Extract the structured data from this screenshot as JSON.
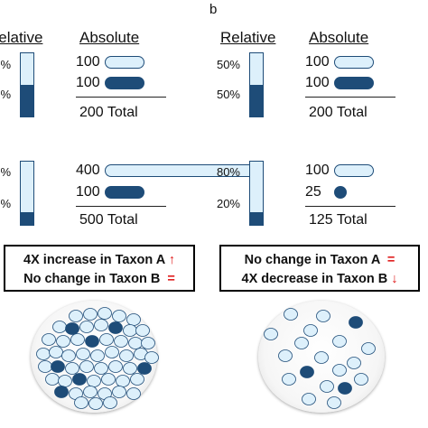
{
  "panel_label": "b",
  "colors": {
    "dark": "#1e4c78",
    "light": "#ddf0fb",
    "arrow": "#e02020"
  },
  "headers": {
    "relative": "Relative",
    "absolute": "Absolute"
  },
  "left": {
    "top": {
      "pct_a": "%",
      "pct_b": "%",
      "a_rel": 0.5,
      "count_a": "100",
      "count_b": "100",
      "total": "200 Total",
      "a_abs": 100,
      "b_abs": 100
    },
    "bottom": {
      "pct_a": "%",
      "pct_b": "%",
      "a_rel": 0.8,
      "count_a": "400",
      "count_b": "100",
      "total": "500 Total",
      "a_abs": 400,
      "b_abs": 100
    },
    "box": {
      "line1": "4X increase in Taxon A",
      "line1_mark": "↑",
      "line2": "No change in Taxon B",
      "line2_mark": "="
    }
  },
  "right": {
    "top": {
      "pct_a": "50%",
      "pct_b": "50%",
      "a_rel": 0.5,
      "count_a": "100",
      "count_b": "100",
      "total": "200 Total",
      "a_abs": 100,
      "b_abs": 100
    },
    "bottom": {
      "pct_a": "80%",
      "pct_b": "20%",
      "a_rel": 0.8,
      "count_a": "100",
      "count_b": "25",
      "total": "125 Total",
      "a_abs": 100,
      "b_abs": 25
    },
    "box": {
      "line1": "No change in Taxon A",
      "line1_mark": "=",
      "line2": "4X decrease in Taxon B",
      "line2_mark": "↓"
    }
  }
}
